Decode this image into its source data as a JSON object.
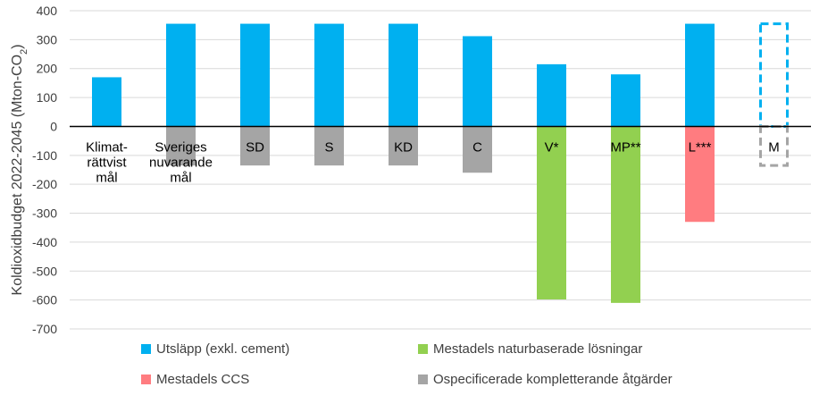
{
  "chart_data": {
    "type": "bar",
    "stacked": true,
    "ylabel": "Koldioxidbudget 2022-2045 (Mton-CO",
    "ylabel_sub": "2",
    "ylabel_end": ")",
    "ylim": [
      -700,
      400
    ],
    "yticks": [
      400,
      300,
      200,
      100,
      0,
      -100,
      -200,
      -300,
      -400,
      -500,
      -600,
      -700
    ],
    "grid": true,
    "legend_position": "bottom",
    "categories": [
      [
        "Klimat-",
        "rättvist",
        "mål"
      ],
      [
        "Sveriges",
        "nuvarande",
        "mål"
      ],
      [
        "SD"
      ],
      [
        "S"
      ],
      [
        "KD"
      ],
      [
        "C"
      ],
      [
        "V*"
      ],
      [
        "MP**"
      ],
      [
        "L***"
      ],
      [
        "M"
      ]
    ],
    "series": [
      {
        "name": "Utsläpp (exkl. cement)",
        "color": "#00B0F0",
        "values": [
          170,
          355,
          355,
          355,
          355,
          312,
          215,
          180,
          355,
          355
        ],
        "dashed": [
          false,
          false,
          false,
          false,
          false,
          false,
          false,
          false,
          false,
          true
        ]
      },
      {
        "name": "Mestadels naturbaserade lösningar",
        "color": "#92D050",
        "values": [
          0,
          0,
          0,
          0,
          0,
          0,
          -598,
          -610,
          0,
          0
        ],
        "dashed": [
          false,
          false,
          false,
          false,
          false,
          false,
          false,
          false,
          false,
          false
        ]
      },
      {
        "name": "Mestadels CCS",
        "color": "#FF7C80",
        "values": [
          0,
          0,
          0,
          0,
          0,
          0,
          0,
          0,
          -330,
          0
        ],
        "dashed": [
          false,
          false,
          false,
          false,
          false,
          false,
          false,
          false,
          false,
          false
        ]
      },
      {
        "name": "Ospecificerade kompletterande åtgärder",
        "color": "#A5A5A5",
        "values": [
          0,
          -135,
          -135,
          -135,
          -135,
          -160,
          0,
          0,
          0,
          -135
        ],
        "dashed": [
          false,
          false,
          false,
          false,
          false,
          false,
          false,
          false,
          false,
          true
        ]
      }
    ]
  }
}
